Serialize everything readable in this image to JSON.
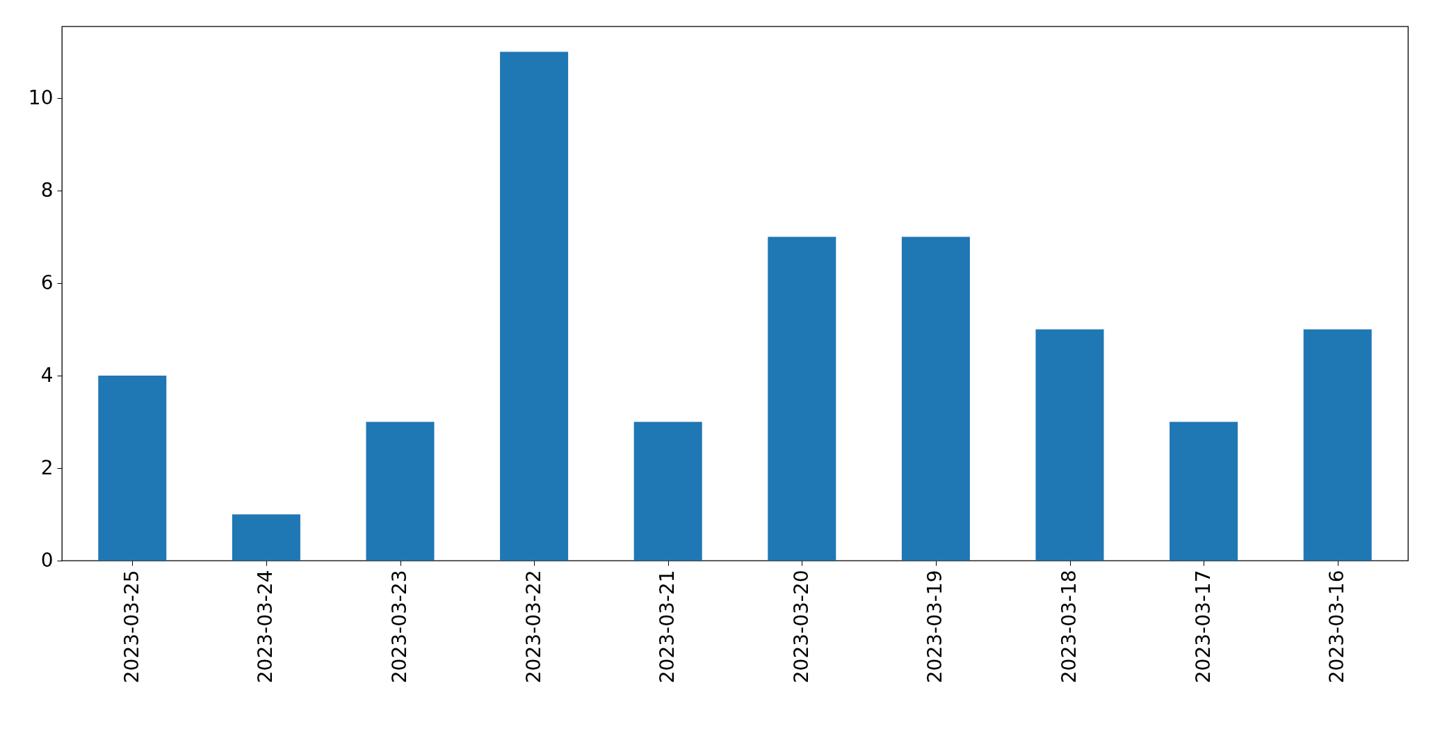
{
  "chart_data": {
    "type": "bar",
    "categories": [
      "2023-03-25",
      "2023-03-24",
      "2023-03-23",
      "2023-03-22",
      "2023-03-21",
      "2023-03-20",
      "2023-03-19",
      "2023-03-18",
      "2023-03-17",
      "2023-03-16"
    ],
    "values": [
      4,
      1,
      3,
      11,
      3,
      7,
      7,
      5,
      3,
      5
    ],
    "color": "#1f77b4",
    "ylim": [
      0,
      11.55
    ],
    "yticks": [
      0,
      2,
      4,
      6,
      8,
      10
    ],
    "grid": false
  }
}
